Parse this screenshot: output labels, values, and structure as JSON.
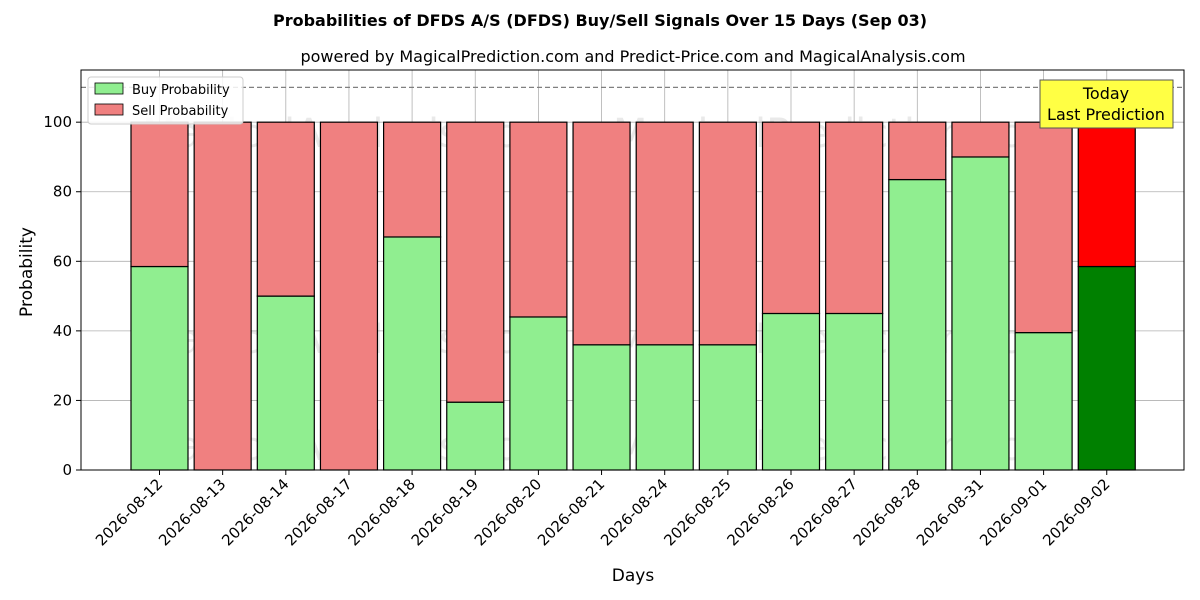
{
  "chart_data": {
    "type": "bar",
    "stacked": true,
    "title": "Probabilities of DFDS A/S (DFDS) Buy/Sell Signals Over 15 Days (Sep 03)",
    "subtitle": "powered by MagicalPrediction.com and Predict-Price.com and MagicalAnalysis.com",
    "xlabel": "Days",
    "ylabel": "Probability",
    "ylim": [
      0,
      115
    ],
    "yticks": [
      0,
      20,
      40,
      60,
      80,
      100
    ],
    "reference_line": 110,
    "grid": true,
    "legend_position": "top-left",
    "categories": [
      "2026-08-12",
      "2026-08-13",
      "2026-08-14",
      "2026-08-17",
      "2026-08-18",
      "2026-08-19",
      "2026-08-20",
      "2026-08-21",
      "2026-08-24",
      "2026-08-25",
      "2026-08-26",
      "2026-08-27",
      "2026-08-28",
      "2026-08-31",
      "2026-09-01",
      "2026-09-02"
    ],
    "series": [
      {
        "name": "Buy Probability",
        "color": "#90ee90",
        "values": [
          58.5,
          0,
          50,
          0,
          67,
          19.5,
          44,
          36,
          36,
          36,
          45,
          45,
          83.5,
          90,
          39.5,
          58.5
        ]
      },
      {
        "name": "Sell Probability",
        "color": "#f08080",
        "values": [
          41.5,
          100,
          50,
          100,
          33,
          80.5,
          56,
          64,
          64,
          64,
          55,
          55,
          16.5,
          10,
          60.5,
          41.5
        ]
      }
    ],
    "highlight": {
      "index": 15,
      "buy_color": "#008000",
      "sell_color": "#ff0000"
    },
    "annotation": {
      "lines": [
        "Today",
        "Last Prediction"
      ],
      "background": "#ffff44"
    },
    "watermarks": [
      "MagicalAnalysis.com",
      "MagicalPrediction.com"
    ]
  }
}
